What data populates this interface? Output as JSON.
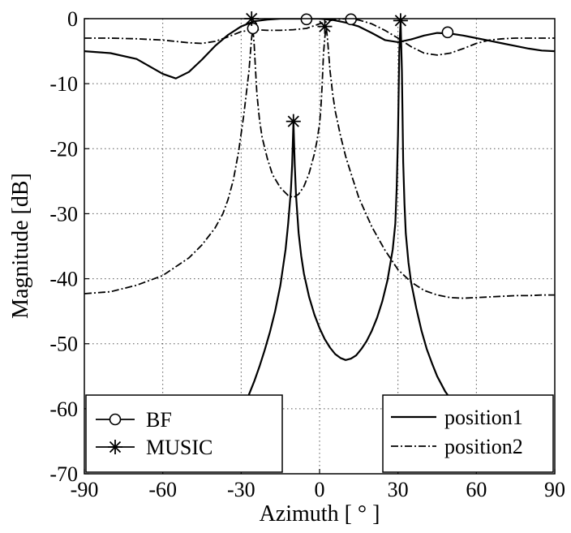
{
  "chart_data": {
    "type": "line",
    "title": "",
    "xlabel": "Azimuth [ ° ]",
    "ylabel": "Magnitude [dB]",
    "xlim": [
      -90,
      90
    ],
    "ylim": [
      -70,
      0
    ],
    "xticks": [
      -90,
      -60,
      -30,
      0,
      30,
      60,
      90
    ],
    "yticks": [
      0,
      -10,
      -20,
      -30,
      -40,
      -50,
      -60,
      -70
    ],
    "xtick_labels": [
      "-90",
      "-60",
      "-30",
      "0",
      "30",
      "60",
      "90"
    ],
    "ytick_labels": [
      "0",
      "-10",
      "-20",
      "-30",
      "-40",
      "-50",
      "-60",
      "-70"
    ],
    "grid": true,
    "legends": [
      {
        "placement": "bottom-left",
        "entries": [
          {
            "label": "BF",
            "marker": "circle"
          },
          {
            "label": "MUSIC",
            "marker": "asterisk"
          }
        ]
      },
      {
        "placement": "bottom-right",
        "entries": [
          {
            "label": "position1",
            "linestyle": "solid"
          },
          {
            "label": "position2",
            "linestyle": "dash-dot"
          }
        ]
      }
    ],
    "series": [
      {
        "name": "BF position1",
        "method": "BF",
        "position": "position1",
        "linestyle": "solid",
        "marker": "circle",
        "x": [
          -90,
          -80,
          -70,
          -60,
          -55,
          -50,
          -45,
          -40,
          -35,
          -30,
          -25,
          -20,
          -15,
          -10,
          -5,
          0,
          5,
          10,
          15,
          20,
          25,
          30,
          35,
          40,
          45,
          50,
          55,
          60,
          65,
          70,
          75,
          80,
          85,
          90
        ],
        "y": [
          -5,
          -5.3,
          -6.2,
          -8.5,
          -9.2,
          -8.2,
          -6.3,
          -4.2,
          -2.5,
          -1.2,
          -0.4,
          -0.15,
          0,
          0,
          0,
          0,
          -0.2,
          -0.6,
          -1.2,
          -2.2,
          -3.3,
          -3.6,
          -3.2,
          -2.6,
          -2.2,
          -2.3,
          -2.6,
          -3,
          -3.4,
          -3.8,
          -4.2,
          -4.6,
          -4.9,
          -5
        ],
        "markers_x": [
          -25.5,
          -5,
          49
        ],
        "markers_y": [
          -1.5,
          -0.1,
          -2.1
        ]
      },
      {
        "name": "BF position2",
        "method": "BF",
        "position": "position2",
        "linestyle": "dash-dot",
        "marker": "circle",
        "x": [
          -90,
          -80,
          -70,
          -60,
          -50,
          -45,
          -40,
          -35,
          -30,
          -25,
          -20,
          -15,
          -10,
          -5,
          0,
          5,
          10,
          15,
          20,
          25,
          30,
          35,
          40,
          45,
          50,
          55,
          60,
          65,
          70,
          75,
          80,
          90
        ],
        "y": [
          -3,
          -3,
          -3.1,
          -3.3,
          -3.7,
          -3.8,
          -3.5,
          -2.8,
          -2,
          -1.7,
          -1.8,
          -1.8,
          -1.7,
          -1.5,
          -0.8,
          -0.2,
          0,
          -0.2,
          -0.8,
          -1.8,
          -3,
          -4.3,
          -5.3,
          -5.6,
          -5.3,
          -4.6,
          -3.8,
          -3.3,
          -3.1,
          -3,
          -3,
          -3
        ],
        "markers_x": [
          12
        ],
        "markers_y": [
          -0.1
        ]
      },
      {
        "name": "MUSIC position1",
        "method": "MUSIC",
        "position": "position1",
        "linestyle": "solid",
        "marker": "asterisk",
        "x": [
          -29,
          -27,
          -25,
          -23,
          -21,
          -19,
          -17,
          -15,
          -13,
          -12,
          -11,
          -10.5,
          -10,
          -9.5,
          -9,
          -8,
          -7,
          -6,
          -4,
          -2,
          0,
          2,
          4,
          6,
          8,
          10,
          12,
          14,
          16,
          18,
          20,
          22,
          24,
          26,
          28,
          29,
          29.5,
          30,
          30.5,
          31,
          31.5,
          32,
          32.5,
          33,
          34,
          35,
          37,
          39,
          41,
          43,
          45,
          48,
          51,
          54,
          57,
          60
        ],
        "y": [
          -59.8,
          -57.8,
          -55.8,
          -53.5,
          -51,
          -48.2,
          -45,
          -41,
          -35.5,
          -31.5,
          -26.5,
          -22.5,
          -15.8,
          -22.5,
          -27.2,
          -33,
          -36.5,
          -39.2,
          -42.8,
          -45.5,
          -47.6,
          -49.3,
          -50.6,
          -51.6,
          -52.2,
          -52.5,
          -52.3,
          -51.8,
          -50.8,
          -49.6,
          -48,
          -46,
          -43.5,
          -40.2,
          -35.5,
          -31.5,
          -26,
          -18,
          -5,
          -0.3,
          -8,
          -22,
          -28.5,
          -33,
          -37.5,
          -40.5,
          -44.5,
          -48,
          -50.8,
          -53,
          -55,
          -57.3,
          -59,
          -60.3,
          -61.2,
          -62
        ]
      },
      {
        "name": "MUSIC position2",
        "method": "MUSIC",
        "position": "position2",
        "linestyle": "dash-dot",
        "marker": "asterisk",
        "x": [
          -90,
          -80,
          -70,
          -60,
          -50,
          -45,
          -40,
          -37,
          -35,
          -33,
          -31,
          -29,
          -27,
          -26,
          -25.5,
          -25,
          -24.5,
          -24,
          -23,
          -22,
          -20,
          -18,
          -15,
          -12,
          -10,
          -8,
          -6,
          -4,
          -2,
          -1,
          0,
          0.5,
          1,
          1.5,
          2,
          2.5,
          3,
          3.5,
          4,
          5,
          6,
          8,
          10,
          12,
          15,
          20,
          25,
          30,
          35,
          40,
          45,
          50,
          55,
          60,
          65,
          70,
          75,
          80,
          85,
          90
        ],
        "y": [
          -42.3,
          -42,
          -41,
          -39.5,
          -36.8,
          -34.8,
          -32.2,
          -30,
          -27.8,
          -24.8,
          -20.5,
          -14.8,
          -8,
          -3,
          -1.5,
          -4,
          -8,
          -11.5,
          -15.5,
          -18.2,
          -21.5,
          -24,
          -26,
          -27.2,
          -27.5,
          -27,
          -25.8,
          -23.8,
          -20.8,
          -18.8,
          -16.2,
          -13.8,
          -10.2,
          -5.5,
          -3,
          -1.2,
          -3,
          -5.5,
          -8,
          -11.5,
          -14.2,
          -18,
          -21.2,
          -23.8,
          -27.5,
          -32,
          -35.6,
          -38.6,
          -40.5,
          -41.8,
          -42.5,
          -42.9,
          -43,
          -42.9,
          -42.8,
          -42.7,
          -42.6,
          -42.6,
          -42.5,
          -42.5
        ],
        "markers_x": [
          -26,
          2,
          -10,
          31
        ],
        "markers_y": [
          0,
          -1.2,
          -15.8,
          -0.3
        ]
      }
    ]
  }
}
